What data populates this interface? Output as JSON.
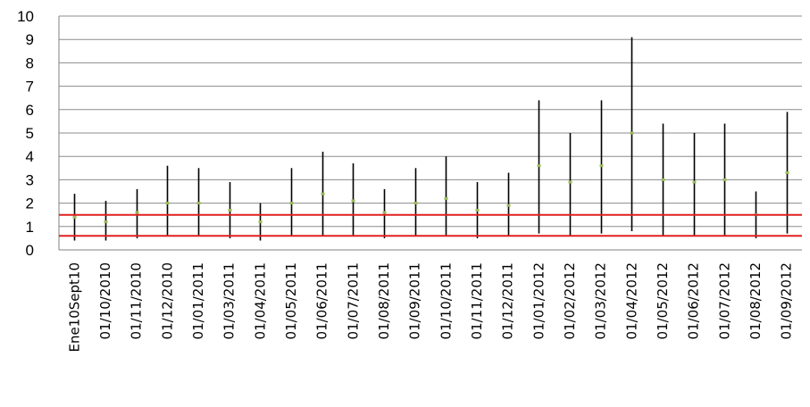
{
  "chart_data": {
    "type": "hi-lo-close",
    "title": "",
    "xlabel": "",
    "ylabel": "",
    "ylim": [
      0,
      10
    ],
    "ytick_step": 1,
    "grid": true,
    "legend": "none",
    "categories": [
      "Ene10Sept10",
      "01/10/2010",
      "01/11/2010",
      "01/12/2010",
      "01/01/2011",
      "01/03/2011",
      "01/04/2011",
      "01/05/2011",
      "01/06/2011",
      "01/07/2011",
      "01/08/2011",
      "01/09/2011",
      "01/10/2011",
      "01/11/2011",
      "01/12/2011",
      "01/01/2012",
      "01/02/2012",
      "01/03/2012",
      "01/04/2012",
      "01/05/2012",
      "01/06/2012",
      "01/07/2012",
      "01/08/2012",
      "01/09/2012"
    ],
    "series": [
      {
        "values_high": [
          2.4,
          2.1,
          2.6,
          3.6,
          3.5,
          2.9,
          2.0,
          3.5,
          4.2,
          3.7,
          2.6,
          3.5,
          4.0,
          2.9,
          3.3,
          6.4,
          5.0,
          6.4,
          9.1,
          5.4,
          5.0,
          5.4,
          2.5,
          5.9
        ]
      },
      {
        "values_low": [
          0.4,
          0.4,
          0.5,
          0.6,
          0.6,
          0.5,
          0.4,
          0.6,
          0.6,
          0.6,
          0.5,
          0.6,
          0.6,
          0.5,
          0.6,
          0.7,
          0.6,
          0.7,
          0.8,
          0.6,
          0.6,
          0.6,
          0.5,
          0.7
        ]
      },
      {
        "values_mid": [
          1.4,
          1.2,
          1.6,
          2.0,
          2.0,
          1.7,
          1.2,
          2.0,
          2.4,
          2.1,
          1.6,
          2.0,
          2.2,
          1.7,
          1.9,
          3.6,
          2.9,
          3.6,
          5.0,
          3.0,
          2.9,
          3.0,
          1.5,
          3.3
        ]
      }
    ],
    "reference_lines": [
      0.6,
      1.5
    ],
    "colors": {
      "range": "#000000",
      "marker": "#9bbb59",
      "reference": "#e02020",
      "grid": "#8c8c8c",
      "axis": "#808080"
    }
  }
}
